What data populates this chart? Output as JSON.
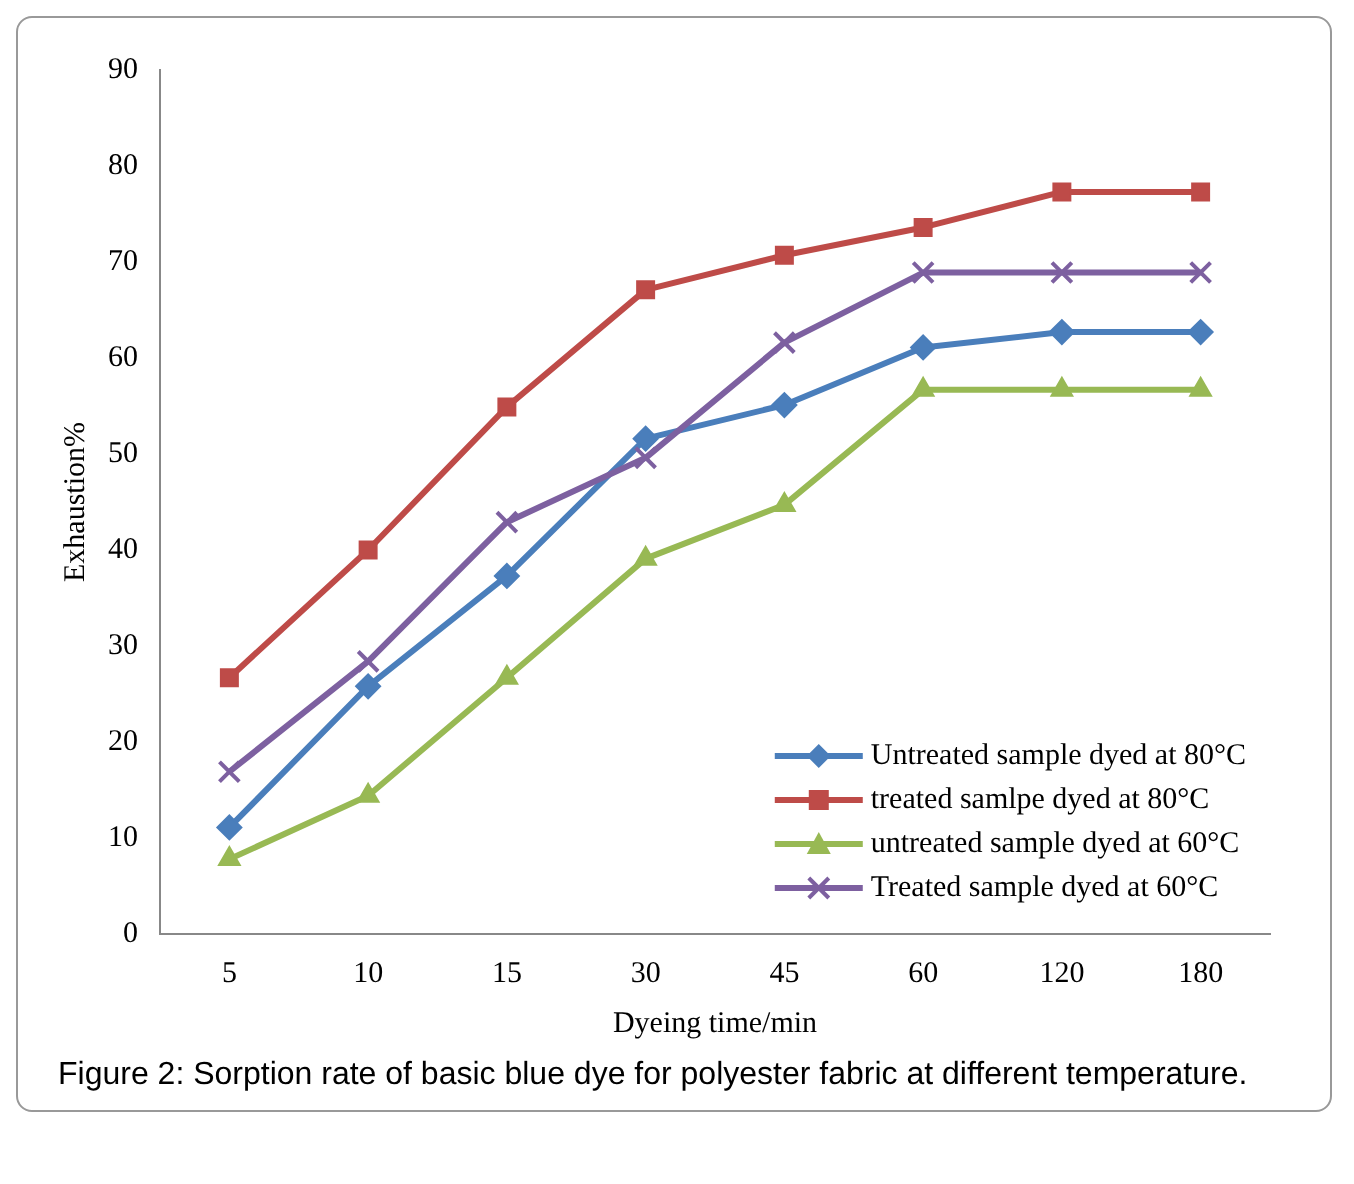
{
  "chart_data": {
    "type": "line",
    "xlabel": "Dyeing time/min",
    "ylabel": "Exhaustion%",
    "categories": [
      "5",
      "10",
      "15",
      "30",
      "45",
      "60",
      "120",
      "180"
    ],
    "series": [
      {
        "name": "Untreated sample dyed at 80°C",
        "color": "#4a7ebb",
        "marker": "diamond",
        "values": [
          11.1,
          25.8,
          37.3,
          51.6,
          55.1,
          61.1,
          62.7,
          62.7
        ]
      },
      {
        "name": "treated samlpe dyed at 80°C",
        "color": "#be4b48",
        "marker": "square",
        "values": [
          26.7,
          40,
          54.9,
          67.1,
          70.7,
          73.6,
          77.3,
          77.3
        ]
      },
      {
        "name": "untreated sample dyed at 60°C",
        "color": "#98b954",
        "marker": "triangle",
        "values": [
          7.8,
          14.4,
          26.7,
          39.1,
          44.7,
          56.7,
          56.7,
          56.7
        ]
      },
      {
        "name": "Treated sample dyed at 60°C",
        "color": "#7d60a0",
        "marker": "cross",
        "values": [
          16.9,
          28.4,
          42.9,
          49.6,
          61.6,
          68.9,
          68.9,
          68.9
        ]
      }
    ],
    "ylim": [
      0,
      90
    ],
    "yticks": [
      0,
      10,
      20,
      30,
      40,
      50,
      60,
      70,
      80,
      90
    ],
    "grid": false,
    "legend": "bottom right",
    "line_style": "solid",
    "annotations": [
      "Figure 2: Sorption rate of basic blue dye for polyester fabric at different temperature."
    ]
  }
}
